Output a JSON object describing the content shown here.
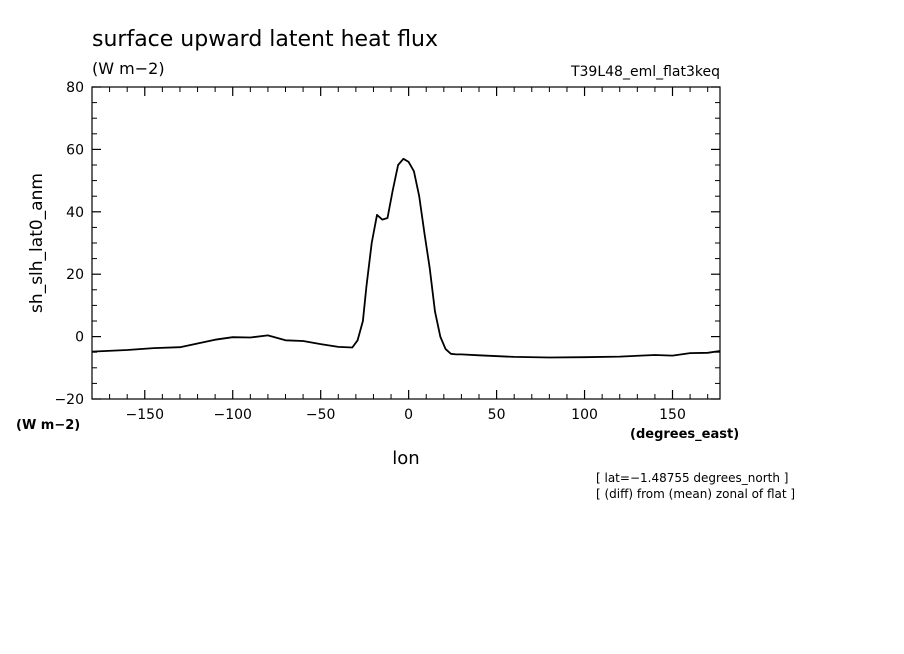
{
  "chart_data": {
    "type": "line",
    "title": "surface upward latent heat flux",
    "units": "(W m−2)",
    "run_label": "T39L48_eml_flat3keq",
    "ylabel": "sh_slh_lat0_anm",
    "y_units": "(W m−2)",
    "xlabel": "lon",
    "x_units": "(degrees_east)",
    "xlim": [
      -180,
      177
    ],
    "ylim": [
      -20,
      80
    ],
    "x_ticks": [
      -150,
      -100,
      -50,
      0,
      50,
      100,
      150
    ],
    "x_tick_labels": [
      "−150",
      "−100",
      "−50",
      "0",
      "50",
      "100",
      "150"
    ],
    "y_ticks": [
      -20,
      0,
      20,
      40,
      60,
      80
    ],
    "y_tick_labels": [
      "−20",
      "0",
      "20",
      "40",
      "60",
      "80"
    ],
    "notes": [
      "[ lat=−1.48755 degrees_north ]",
      "[ (diff) from (mean) zonal of flat ]"
    ],
    "series": [
      {
        "x": [
          -180,
          -160,
          -145,
          -130,
          -120,
          -110,
          -100,
          -90,
          -80,
          -70,
          -60,
          -50,
          -40,
          -32,
          -29,
          -26,
          -24,
          -21,
          -18,
          -15,
          -12,
          -9,
          -6,
          -3,
          0,
          3,
          6,
          9,
          12,
          15,
          18,
          21,
          24,
          27,
          30,
          40,
          60,
          80,
          100,
          120,
          140,
          150,
          160,
          170,
          177
        ],
        "y": [
          -4.8,
          -4.3,
          -3.7,
          -3.4,
          -2.2,
          -1.0,
          -0.2,
          -0.3,
          0.4,
          -1.2,
          -1.4,
          -2.4,
          -3.3,
          -3.5,
          -1.2,
          5,
          16,
          30,
          39,
          37.5,
          38,
          47,
          55,
          57,
          56,
          53,
          45,
          33,
          22,
          8,
          0,
          -4,
          -5.5,
          -5.7,
          -5.7,
          -6.0,
          -6.5,
          -6.7,
          -6.6,
          -6.4,
          -5.9,
          -6.1,
          -5.3,
          -5.2,
          -4.6
        ]
      }
    ]
  }
}
